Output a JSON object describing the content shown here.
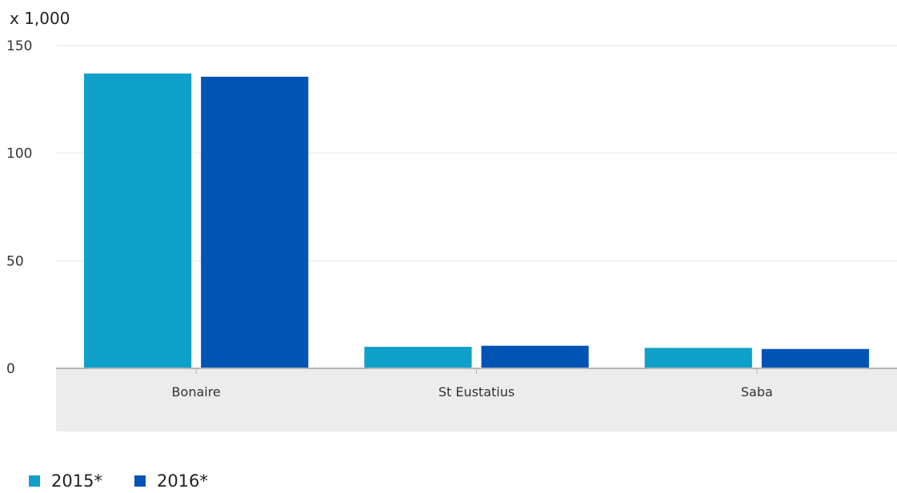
{
  "chart_data": {
    "type": "bar",
    "unit_label": "x 1,000",
    "categories": [
      "Bonaire",
      "St Eustatius",
      "Saba"
    ],
    "series": [
      {
        "name": "2015*",
        "color": "#0ea0c9",
        "values": [
          137,
          10,
          9.5
        ]
      },
      {
        "name": "2016*",
        "color": "#0254b4",
        "values": [
          135.5,
          10.5,
          9
        ]
      }
    ],
    "ylim": [
      0,
      150
    ],
    "yticks": [
      0,
      50,
      100,
      150
    ],
    "grid": true,
    "legend_position": "bottom-left",
    "xlabel": "",
    "ylabel": ""
  }
}
